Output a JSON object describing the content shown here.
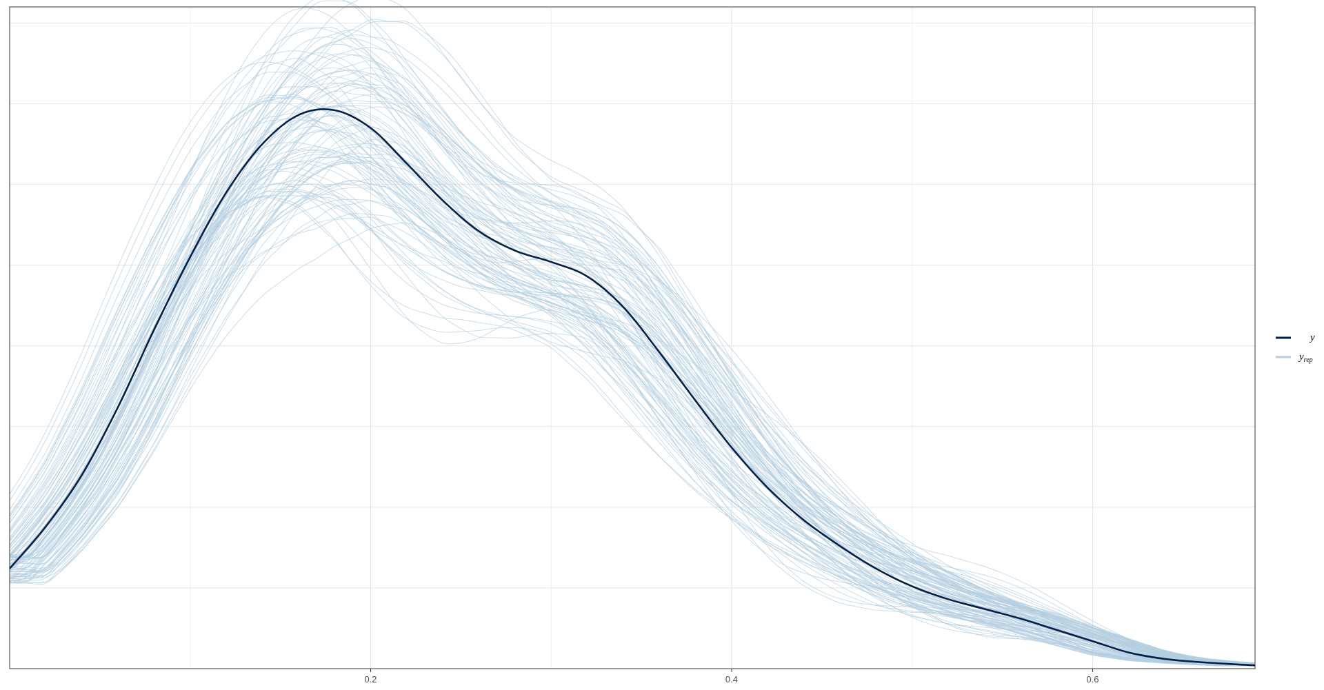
{
  "chart_data": {
    "type": "line",
    "title": "",
    "xlabel": "",
    "ylabel": "",
    "xlim": [
      0.0,
      0.69
    ],
    "ylim": [
      0,
      4.1
    ],
    "x_ticks": [
      0.2,
      0.4,
      0.6
    ],
    "x_tick_labels": [
      "0.2",
      "0.4",
      "0.6"
    ],
    "y_gridlines": [
      0.5,
      1.0,
      1.5,
      2.0,
      2.5,
      3.0,
      3.5,
      4.0
    ],
    "y_tick_labels_shown": false,
    "grid": true,
    "legend_position": "right",
    "observed": {
      "legend": "y",
      "color": "#011f4b",
      "x": [
        0.0,
        0.02,
        0.04,
        0.06,
        0.08,
        0.1,
        0.12,
        0.14,
        0.16,
        0.18,
        0.2,
        0.22,
        0.24,
        0.26,
        0.28,
        0.3,
        0.32,
        0.34,
        0.36,
        0.38,
        0.4,
        0.42,
        0.44,
        0.46,
        0.48,
        0.5,
        0.52,
        0.54,
        0.56,
        0.58,
        0.6,
        0.62,
        0.64,
        0.66,
        0.69
      ],
      "y": [
        0.62,
        0.88,
        1.2,
        1.62,
        2.1,
        2.55,
        2.95,
        3.25,
        3.43,
        3.46,
        3.35,
        3.13,
        2.9,
        2.71,
        2.59,
        2.52,
        2.43,
        2.24,
        1.96,
        1.66,
        1.37,
        1.12,
        0.92,
        0.76,
        0.62,
        0.51,
        0.43,
        0.37,
        0.31,
        0.24,
        0.17,
        0.1,
        0.06,
        0.04,
        0.02
      ]
    },
    "replicates": {
      "legend": "y_rep",
      "legend_base": "y",
      "legend_sub": "rep",
      "color": "#b3cde0",
      "count": 100,
      "note_visible": false
    }
  }
}
